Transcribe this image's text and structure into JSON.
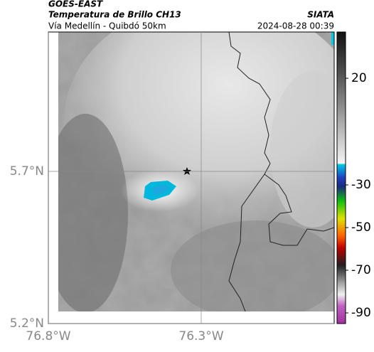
{
  "header": {
    "title": "GOES-EAST",
    "subtitle": "Temperatura de Brillo CH13",
    "route": "Vía Medellín - Quibdó 50km",
    "source": "SIATA",
    "timestamp": "2024-08-28 00:39"
  },
  "map": {
    "lonlim": [
      -76.8,
      -75.865
    ],
    "latlim": [
      5.2,
      6.158
    ],
    "lonticks": [
      {
        "value": -76.8,
        "label": "76.8°W"
      },
      {
        "value": -76.3,
        "label": "76.3°W"
      }
    ],
    "latticks": [
      {
        "value": 5.2,
        "label": "5.2°N"
      },
      {
        "value": 5.7,
        "label": "5.7°N"
      }
    ]
  },
  "colorbar": {
    "lim": [
      41.7,
      -95
    ],
    "ticks": [
      20,
      -30,
      -50,
      -70,
      -90
    ]
  }
}
